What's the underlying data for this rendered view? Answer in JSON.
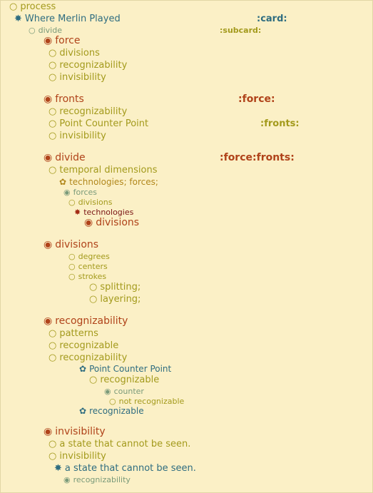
{
  "tree": [
    {
      "label": "process",
      "icon": "○"
    },
    {
      "label": "Where Merlin Played",
      "icon": "✸"
    },
    {
      "label": "divide",
      "icon": "○"
    },
    {
      "label": "force",
      "icon": "◉"
    },
    {
      "label": "divisions",
      "icon": "○"
    },
    {
      "label": "recognizability",
      "icon": "○"
    },
    {
      "label": "invisibility",
      "icon": "○"
    },
    {
      "label": "fronts",
      "icon": "◉"
    },
    {
      "label": "recognizability",
      "icon": "○"
    },
    {
      "label": "Point Counter Point",
      "icon": "○"
    },
    {
      "label": "invisibility",
      "icon": "○"
    },
    {
      "label": "divide",
      "icon": "◉"
    },
    {
      "label": "temporal dimensions",
      "icon": "○"
    },
    {
      "label": "technologies; forces;",
      "icon": "✿"
    },
    {
      "label": "forces",
      "icon": "◉"
    },
    {
      "label": "divisions",
      "icon": "○"
    },
    {
      "label": "technologies",
      "icon": "✸"
    },
    {
      "label": "divisions",
      "icon": "◉"
    },
    {
      "label": "divisions",
      "icon": "◉"
    },
    {
      "label": "degrees",
      "icon": "○"
    },
    {
      "label": "centers",
      "icon": "○"
    },
    {
      "label": "strokes",
      "icon": "○"
    },
    {
      "label": "splitting;",
      "icon": "○"
    },
    {
      "label": "layering;",
      "icon": "○"
    },
    {
      "label": "recognizability",
      "icon": "◉"
    },
    {
      "label": "patterns",
      "icon": "○"
    },
    {
      "label": "recognizable",
      "icon": "○"
    },
    {
      "label": "recognizability",
      "icon": "○"
    },
    {
      "label": "Point Counter Point",
      "icon": "✿"
    },
    {
      "label": "recognizable",
      "icon": "○"
    },
    {
      "label": "counter",
      "icon": "◉"
    },
    {
      "label": "not recognizable",
      "icon": "○"
    },
    {
      "label": "recognizable",
      "icon": "✿"
    },
    {
      "label": "invisibility",
      "icon": "◉"
    },
    {
      "label": "a state that cannot be seen.",
      "icon": "○"
    },
    {
      "label": "invisibility",
      "icon": "○"
    },
    {
      "label": "a state that cannot be seen.",
      "icon": "✸"
    },
    {
      "label": "recognizability",
      "icon": "◉"
    }
  ],
  "tags": {
    "card": ":card:",
    "subcard": ":subcard:",
    "force": ":force:",
    "fronts": ":fronts:",
    "force_fronts": ":force:fronts:"
  },
  "colors": {
    "background": "#fbf0c6",
    "olive": "#a39a1c",
    "teal": "#2f6d80",
    "rust": "#b0431a",
    "sage": "#7a9a7a",
    "gold": "#b1871b",
    "maroon": "#7a1414"
  }
}
